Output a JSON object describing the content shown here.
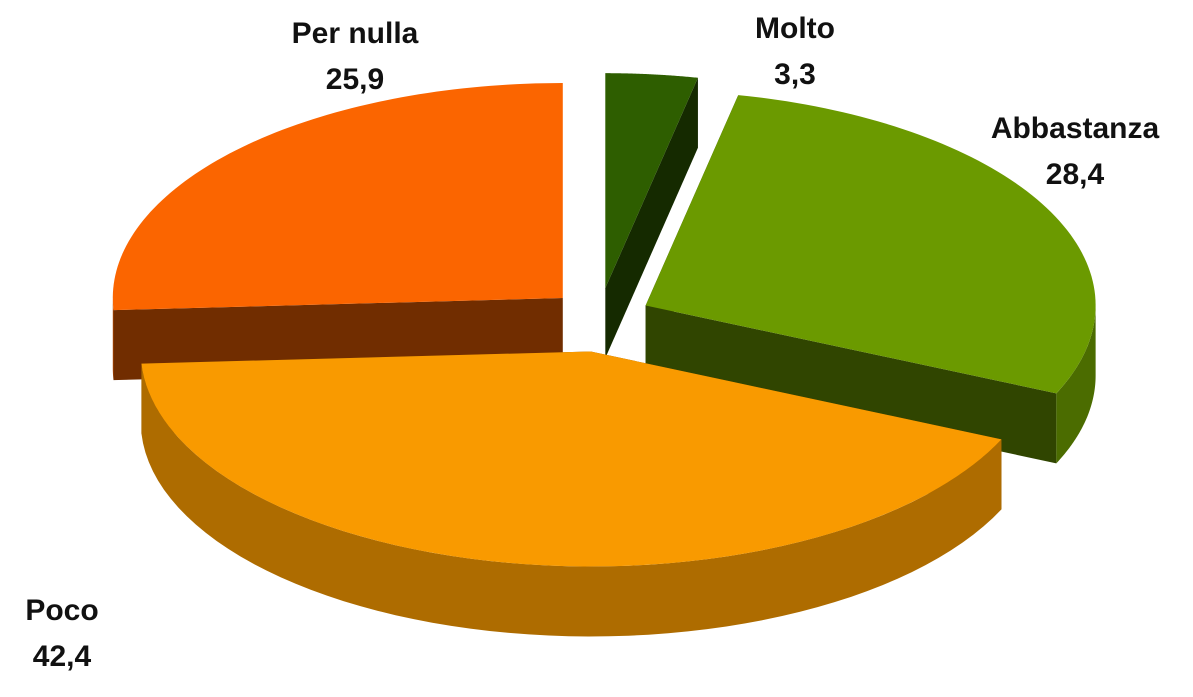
{
  "chart_data": {
    "type": "pie",
    "categories": [
      "Molto",
      "Abbastanza",
      "Poco",
      "Per nulla"
    ],
    "values": [
      3.3,
      28.4,
      42.4,
      25.9
    ],
    "value_labels": [
      "3,3",
      "28,4",
      "42,4",
      "25,9"
    ],
    "colors": [
      "#2e5e00",
      "#6b9a00",
      "#f99a00",
      "#fb6500"
    ]
  }
}
